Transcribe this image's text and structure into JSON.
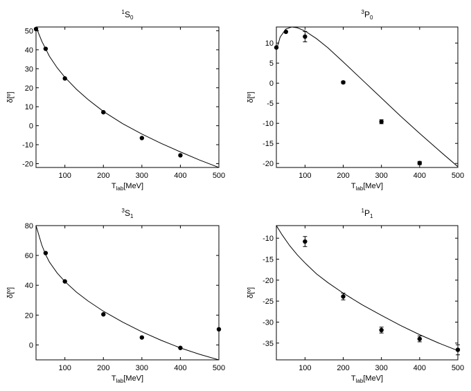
{
  "colors": {
    "line": "#000000",
    "marker": "#000000",
    "background": "#ffffff"
  },
  "chart_data": [
    {
      "type": "scatter",
      "title": {
        "sup": "1",
        "main": "S",
        "sub": "0"
      },
      "xlabel": {
        "main": "T",
        "sub": "lab",
        "rest": "[MeV]"
      },
      "ylabel": "δ[º]",
      "xlim": [
        25,
        500
      ],
      "ylim": [
        -22,
        52
      ],
      "xticks": [
        "100",
        "200",
        "300",
        "400",
        "500"
      ],
      "yticks": [
        "50",
        "40",
        "30",
        "20",
        "10",
        "0",
        "-10",
        "-20"
      ],
      "series": [
        {
          "kind": "points",
          "x": [
            25,
            50,
            100,
            200,
            300,
            400
          ],
          "y": [
            50.9,
            40.5,
            24.9,
            7.1,
            -6.5,
            -15.6
          ],
          "err": [
            0,
            0,
            0,
            0,
            0,
            0
          ]
        },
        {
          "kind": "curve",
          "x": [
            25,
            40,
            60,
            80,
            100,
            130,
            160,
            200,
            250,
            300,
            350,
            400,
            450,
            500
          ],
          "y": [
            52,
            44.5,
            36.5,
            30.5,
            25.5,
            19.2,
            13.8,
            7.5,
            1.1,
            -4.4,
            -9.3,
            -13.8,
            -18.1,
            -22
          ]
        }
      ]
    },
    {
      "type": "scatter",
      "title": {
        "sup": "3",
        "main": "P",
        "sub": "0"
      },
      "xlabel": {
        "main": "T",
        "sub": "lab",
        "rest": "[MeV]"
      },
      "ylabel": "δ[º]",
      "xlim": [
        25,
        500
      ],
      "ylim": [
        -21,
        14
      ],
      "xticks": [
        "100",
        "200",
        "300",
        "400",
        "500"
      ],
      "yticks": [
        "10",
        "5",
        "0",
        "-5",
        "-10",
        "-15",
        "-20"
      ],
      "series": [
        {
          "kind": "points",
          "x": [
            25,
            50,
            100,
            200,
            300,
            400
          ],
          "y": [
            8.9,
            12.8,
            11.6,
            0.2,
            -9.6,
            -19.9
          ],
          "err": [
            0,
            0,
            1.3,
            0.3,
            0.5,
            0.4
          ]
        },
        {
          "kind": "curve",
          "x": [
            25,
            35,
            50,
            65,
            80,
            100,
            130,
            160,
            200,
            250,
            300,
            350,
            400,
            450,
            500
          ],
          "y": [
            8.2,
            11.5,
            13.5,
            14,
            13.8,
            13,
            11.1,
            8.8,
            5.3,
            0.8,
            -3.7,
            -8.2,
            -12.5,
            -16.7,
            -20.8
          ]
        }
      ]
    },
    {
      "type": "scatter",
      "title": {
        "sup": "3",
        "main": "S",
        "sub": "1"
      },
      "xlabel": {
        "main": "T",
        "sub": "lab",
        "rest": "[MeV]"
      },
      "ylabel": "δ[º]",
      "xlim": [
        25,
        500
      ],
      "ylim": [
        -10,
        80
      ],
      "xticks": [
        "100",
        "200",
        "300",
        "400",
        "500"
      ],
      "yticks": [
        "80",
        "60",
        "40",
        "20",
        "0"
      ],
      "series": [
        {
          "kind": "points",
          "x": [
            50,
            100,
            200,
            300,
            400,
            500
          ],
          "y": [
            61.6,
            42.6,
            20.5,
            5,
            -2,
            10.5
          ],
          "err": [
            0,
            0,
            0,
            0,
            0,
            0
          ]
        },
        {
          "kind": "curve",
          "x": [
            25,
            40,
            50,
            60,
            80,
            100,
            130,
            160,
            200,
            250,
            300,
            350,
            400,
            450,
            500
          ],
          "y": [
            80,
            67,
            60.5,
            55.5,
            48.2,
            42.5,
            35.4,
            29.5,
            22.6,
            15.3,
            8.8,
            3.1,
            -2,
            -6.3,
            -10
          ]
        }
      ]
    },
    {
      "type": "scatter",
      "title": {
        "sup": "1",
        "main": "P",
        "sub": "1"
      },
      "xlabel": {
        "main": "T",
        "sub": "lab",
        "rest": "[MeV]"
      },
      "ylabel": "δ[º]",
      "xlim": [
        25,
        500
      ],
      "ylim": [
        -39,
        -7
      ],
      "xticks": [
        "100",
        "200",
        "300",
        "400",
        "500"
      ],
      "yticks": [
        "-10",
        "-15",
        "-20",
        "-25",
        "-30",
        "-35"
      ],
      "series": [
        {
          "kind": "points",
          "x": [
            100,
            200,
            300,
            400,
            500
          ],
          "y": [
            -10.8,
            -23.9,
            -31.9,
            -34,
            -36.6
          ],
          "err": [
            1.2,
            0.8,
            0.7,
            0.7,
            1.2
          ]
        },
        {
          "kind": "curve",
          "x": [
            25,
            40,
            60,
            80,
            100,
            130,
            160,
            200,
            250,
            300,
            350,
            400,
            450,
            500
          ],
          "y": [
            -7,
            -9.2,
            -11.8,
            -14,
            -15.9,
            -18.5,
            -20.6,
            -23.1,
            -25.9,
            -28.4,
            -30.8,
            -33,
            -35,
            -36.8
          ]
        }
      ]
    }
  ]
}
